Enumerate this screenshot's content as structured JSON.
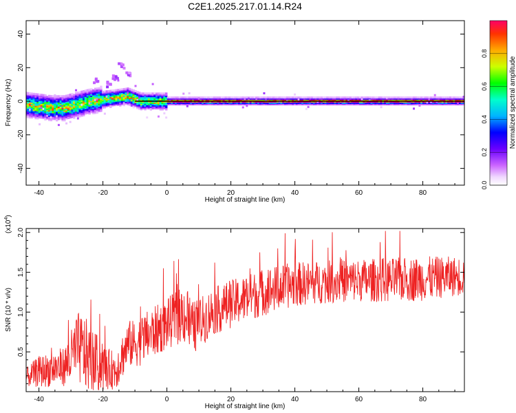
{
  "page_title": "C2E1.2025.217.01.14.R24",
  "chart_data": [
    {
      "type": "heatmap",
      "xlabel": "Height of straight line (km)",
      "ylabel": "Frequency (Hz)",
      "xlim": [
        -44,
        93
      ],
      "ylim": [
        -50,
        48
      ],
      "xticks": [
        -40,
        -20,
        0,
        20,
        40,
        60,
        80
      ],
      "xtick_labels": [
        "-40",
        "-20",
        "0",
        "20",
        "40",
        "60",
        "80"
      ],
      "yticks": [
        -40,
        -20,
        0,
        20,
        40
      ],
      "ytick_labels": [
        "-40",
        "-20",
        "0",
        "20",
        "40"
      ],
      "grid": false,
      "ridge_frequency": {
        "x": [
          -44,
          -40,
          -36,
          -32,
          -28,
          -24,
          -20,
          -16,
          -12,
          -8,
          -4,
          0,
          10,
          20,
          40,
          60,
          93
        ],
        "freq": [
          -2,
          -3,
          -4,
          -4,
          -2,
          0,
          1,
          2,
          3,
          0,
          0,
          0,
          0,
          0,
          0,
          0,
          0
        ]
      },
      "colorbar": {
        "label": "Normalized spectral amplitude",
        "range": [
          0.0,
          1.0
        ],
        "ticks": [
          0.0,
          0.2,
          0.4,
          0.6,
          0.8
        ],
        "tick_labels": [
          "0.0",
          "0.2",
          "0.4",
          "0.6",
          "0.8"
        ],
        "stops": [
          {
            "v": 0.0,
            "color": "#ffffff"
          },
          {
            "v": 0.05,
            "color": "#f0d8ff"
          },
          {
            "v": 0.12,
            "color": "#cc66ff"
          },
          {
            "v": 0.22,
            "color": "#6a00ff"
          },
          {
            "v": 0.32,
            "color": "#0000ff"
          },
          {
            "v": 0.42,
            "color": "#00b4ff"
          },
          {
            "v": 0.52,
            "color": "#00ffcc"
          },
          {
            "v": 0.62,
            "color": "#00ff00"
          },
          {
            "v": 0.72,
            "color": "#ccff00"
          },
          {
            "v": 0.82,
            "color": "#ffaa00"
          },
          {
            "v": 0.92,
            "color": "#ff3300"
          },
          {
            "v": 1.0,
            "color": "#ff0066"
          }
        ]
      }
    },
    {
      "type": "line",
      "xlabel": "Height of straight line (km)",
      "ylabel": "SNR (10 * v/v)",
      "exponent_label": "(x10",
      "exponent_power": "4",
      "exponent_close": ")",
      "xlim": [
        -44,
        93
      ],
      "ylim": [
        0,
        2.05
      ],
      "xticks": [
        -40,
        -20,
        0,
        20,
        40,
        60,
        80
      ],
      "xtick_labels": [
        "-40",
        "-20",
        "0",
        "20",
        "40",
        "60",
        "80"
      ],
      "yticks": [
        0.5,
        1.0,
        1.5,
        2.0
      ],
      "ytick_labels": [
        "0.5",
        "1.0",
        "1.5",
        "2.0"
      ],
      "grid": false,
      "color": "#ee2222",
      "series": [
        {
          "x": [
            -44,
            -40,
            -36,
            -32,
            -30,
            -28,
            -26,
            -24,
            -22,
            -20,
            -18,
            -16,
            -14,
            -12,
            -10,
            -8,
            -6,
            -4,
            -2,
            0,
            2,
            4,
            5,
            6,
            8,
            10,
            14,
            20,
            30,
            40,
            50,
            60,
            70,
            80,
            90,
            93
          ],
          "mean": [
            0.18,
            0.25,
            0.28,
            0.32,
            0.42,
            0.55,
            0.5,
            0.4,
            0.35,
            0.3,
            0.28,
            0.27,
            0.45,
            0.6,
            0.6,
            0.65,
            0.7,
            0.75,
            0.8,
            0.85,
            0.9,
            0.95,
            1.0,
            0.95,
            0.8,
            0.85,
            1.0,
            1.1,
            1.25,
            1.35,
            1.38,
            1.4,
            1.4,
            1.42,
            1.45,
            1.45
          ],
          "amp": [
            0.12,
            0.2,
            0.22,
            0.25,
            0.35,
            0.45,
            0.48,
            0.42,
            0.38,
            0.3,
            0.25,
            0.25,
            0.28,
            0.3,
            0.3,
            0.32,
            0.32,
            0.32,
            0.32,
            0.32,
            0.34,
            0.35,
            0.38,
            0.42,
            0.34,
            0.32,
            0.3,
            0.3,
            0.3,
            0.28,
            0.27,
            0.27,
            0.28,
            0.28,
            0.25,
            0.25
          ]
        }
      ]
    }
  ]
}
